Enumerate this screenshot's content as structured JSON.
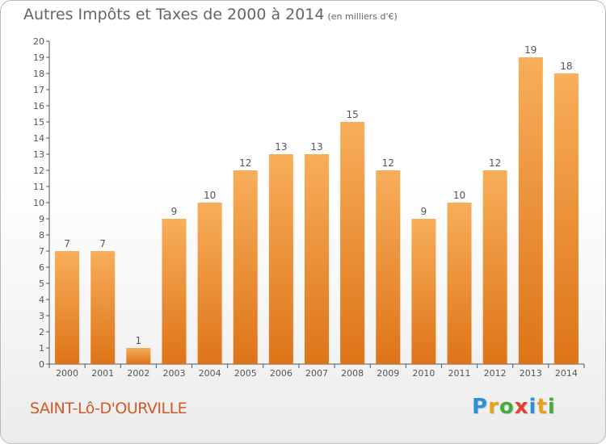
{
  "title": "Autres Impôts et Taxes de 2000 à 2014",
  "unit": "(en milliers d'€)",
  "commune": "SAINT-Lô-D'OURVILLE",
  "logo": {
    "letters": [
      "P",
      "r",
      "o",
      "x",
      "i",
      "t",
      "i"
    ],
    "colors": [
      "#2e8fd6",
      "#e8a11c",
      "#48a93e",
      "#e23f2e",
      "#2e8fd6",
      "#e8a11c",
      "#48a93e"
    ]
  },
  "colors": {
    "bar": "#f0922f",
    "bar_light": "#f8ae5a",
    "bar_dark": "#de7418"
  },
  "chart_data": {
    "type": "bar",
    "title": "Autres Impôts et Taxes de 2000 à 2014",
    "categories": [
      "2000",
      "2001",
      "2002",
      "2003",
      "2004",
      "2005",
      "2006",
      "2007",
      "2008",
      "2009",
      "2010",
      "2011",
      "2012",
      "2013",
      "2014"
    ],
    "values": [
      7,
      7,
      1,
      9,
      10,
      12,
      13,
      13,
      15,
      12,
      9,
      10,
      12,
      19,
      18
    ],
    "ylim": [
      0,
      20
    ],
    "yticks": [
      "0",
      "1",
      "2",
      "3",
      "4",
      "5",
      "6",
      "7",
      "8",
      "9",
      "10",
      "11",
      "12",
      "13",
      "14",
      "15",
      "16",
      "17",
      "18",
      "19",
      "20"
    ],
    "grid": false,
    "data_labels": true
  }
}
